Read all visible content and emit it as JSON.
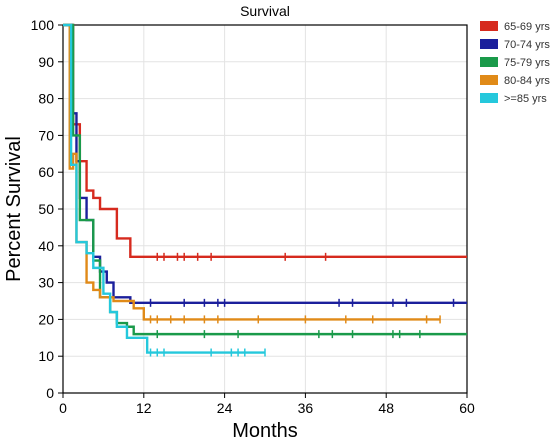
{
  "chart_data": {
    "type": "line",
    "subtype": "kaplan-meier-step",
    "title": "Survival",
    "xlabel": "Months",
    "ylabel": "Percent Survival",
    "xlim": [
      0,
      60
    ],
    "ylim": [
      0,
      100
    ],
    "xticks": [
      0,
      12,
      24,
      36,
      48,
      60
    ],
    "yticks": [
      0,
      10,
      20,
      30,
      40,
      50,
      60,
      70,
      80,
      90,
      100
    ],
    "grid": true,
    "legend_position": "top-right",
    "series": [
      {
        "name": "65-69 yrs",
        "color": "#d62a1e",
        "steps": [
          [
            0,
            100
          ],
          [
            1.5,
            73
          ],
          [
            2.5,
            63
          ],
          [
            3.5,
            55
          ],
          [
            4.5,
            53
          ],
          [
            5.5,
            50
          ],
          [
            8,
            42
          ],
          [
            10,
            37
          ],
          [
            60,
            37
          ]
        ],
        "censor_x": [
          14,
          15,
          17,
          18,
          20,
          22,
          33,
          39
        ]
      },
      {
        "name": "70-74 yrs",
        "color": "#1b1f9c",
        "steps": [
          [
            0,
            100
          ],
          [
            1.3,
            76
          ],
          [
            2,
            63
          ],
          [
            2.5,
            53
          ],
          [
            3.5,
            47
          ],
          [
            4.5,
            37
          ],
          [
            5.5,
            33
          ],
          [
            6.5,
            30
          ],
          [
            7.5,
            26
          ],
          [
            10,
            24.5
          ],
          [
            60,
            24.5
          ]
        ],
        "censor_x": [
          13,
          18,
          21,
          23,
          24,
          41,
          43,
          49,
          51,
          58
        ]
      },
      {
        "name": "75-79 yrs",
        "color": "#1a9a4a",
        "steps": [
          [
            0,
            100
          ],
          [
            1.5,
            70
          ],
          [
            2.5,
            47
          ],
          [
            4.5,
            36
          ],
          [
            5.5,
            26
          ],
          [
            7,
            22
          ],
          [
            8,
            19
          ],
          [
            9.5,
            18
          ],
          [
            10.5,
            16
          ],
          [
            60,
            16
          ]
        ],
        "censor_x": [
          14,
          21,
          26,
          38,
          40,
          43,
          49,
          50,
          53
        ]
      },
      {
        "name": "80-84 yrs",
        "color": "#e08a18",
        "steps": [
          [
            0,
            100
          ],
          [
            1,
            61
          ],
          [
            1.5,
            65
          ],
          [
            2,
            41
          ],
          [
            3.5,
            30
          ],
          [
            4.5,
            28
          ],
          [
            5.5,
            26
          ],
          [
            7.5,
            25
          ],
          [
            10.5,
            23
          ],
          [
            12,
            20
          ],
          [
            56,
            20
          ]
        ],
        "censor_x": [
          13,
          14,
          16,
          18,
          21,
          23,
          29,
          36,
          42,
          46,
          54,
          56
        ]
      },
      {
        "name": ">=85 yrs",
        "color": "#25c8dc",
        "steps": [
          [
            0,
            100
          ],
          [
            1.2,
            62
          ],
          [
            2,
            41
          ],
          [
            3.5,
            38
          ],
          [
            4.5,
            34
          ],
          [
            6,
            27
          ],
          [
            7,
            22
          ],
          [
            8,
            18
          ],
          [
            9.5,
            15
          ],
          [
            12.5,
            11
          ],
          [
            30,
            11
          ]
        ],
        "censor_x": [
          13,
          14,
          15,
          22,
          25,
          26,
          27,
          30
        ]
      }
    ]
  }
}
